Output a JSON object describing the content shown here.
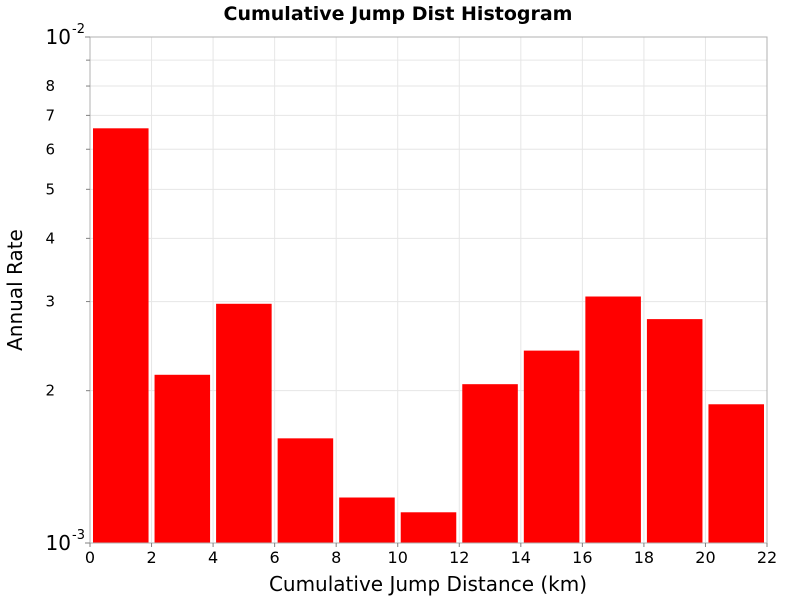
{
  "chart_data": {
    "type": "bar",
    "title": "Cumulative Jump Dist Histogram",
    "xlabel": "Cumulative Jump Distance (km)",
    "ylabel": "Annual Rate",
    "xlim": [
      0,
      22
    ],
    "ylim": [
      0.001,
      0.01
    ],
    "yscale": "log",
    "grid": true,
    "bar_color": "#ff0000",
    "x_ticks": [
      0,
      2,
      4,
      6,
      8,
      10,
      12,
      14,
      16,
      18,
      20,
      22
    ],
    "y_major_ticks": [
      {
        "value": 0.001,
        "base": "10",
        "exp": "-3"
      },
      {
        "value": 0.01,
        "base": "10",
        "exp": "-2"
      }
    ],
    "y_minor_ticks": [
      {
        "value": 0.002,
        "label": "2"
      },
      {
        "value": 0.003,
        "label": "3"
      },
      {
        "value": 0.004,
        "label": "4"
      },
      {
        "value": 0.005,
        "label": "5"
      },
      {
        "value": 0.006,
        "label": "6"
      },
      {
        "value": 0.007,
        "label": "7"
      },
      {
        "value": 0.008,
        "label": "8"
      },
      {
        "value": 0.009,
        "label": ""
      }
    ],
    "bars": [
      {
        "x0": 0,
        "x1": 2,
        "value": 0.0066
      },
      {
        "x0": 2,
        "x1": 4,
        "value": 0.00215
      },
      {
        "x0": 4,
        "x1": 6,
        "value": 0.00297
      },
      {
        "x0": 6,
        "x1": 8,
        "value": 0.00161
      },
      {
        "x0": 8,
        "x1": 10,
        "value": 0.00123
      },
      {
        "x0": 10,
        "x1": 12,
        "value": 0.00115
      },
      {
        "x0": 12,
        "x1": 14,
        "value": 0.00206
      },
      {
        "x0": 14,
        "x1": 16,
        "value": 0.0024
      },
      {
        "x0": 16,
        "x1": 18,
        "value": 0.00307
      },
      {
        "x0": 18,
        "x1": 20,
        "value": 0.00277
      },
      {
        "x0": 20,
        "x1": 22,
        "value": 0.00188
      }
    ]
  }
}
